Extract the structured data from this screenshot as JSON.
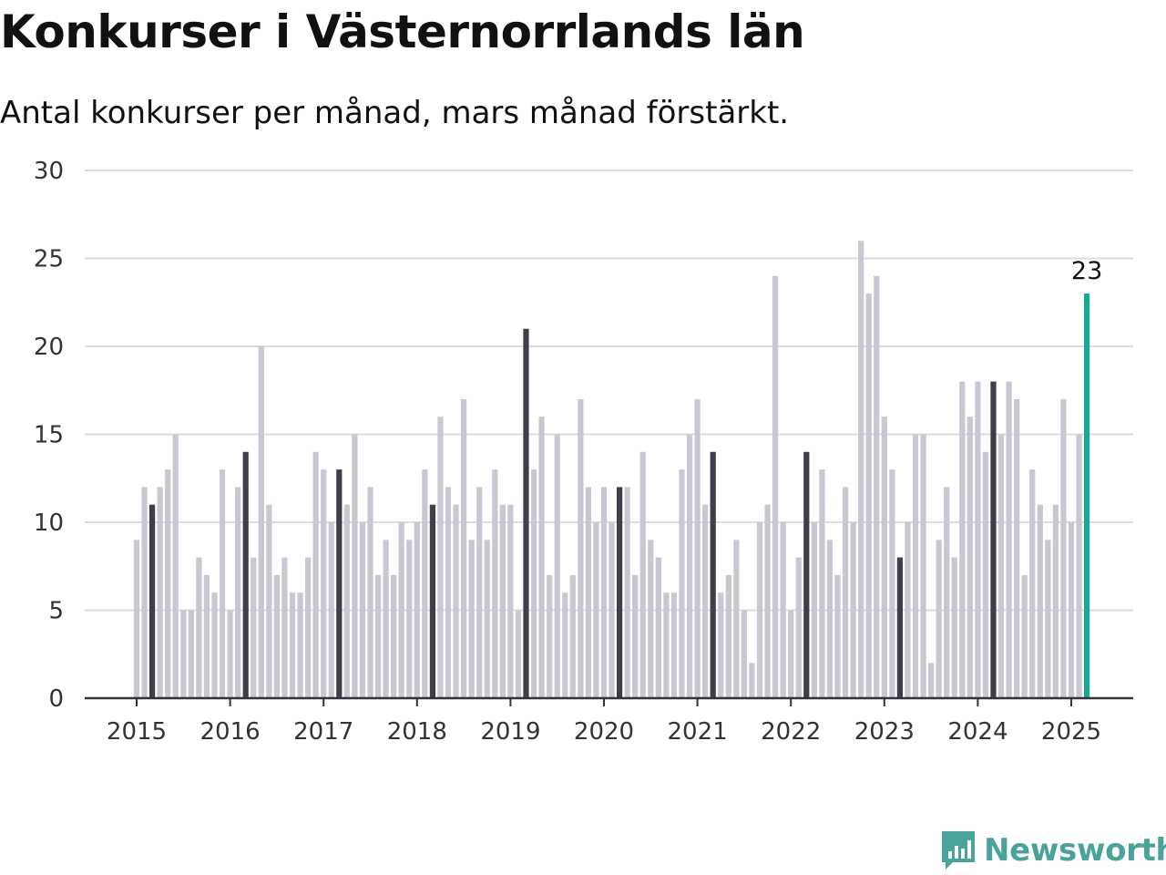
{
  "header": {
    "title": "Konkurser i Västernorrlands län",
    "subtitle": "Antal konkurser per månad, mars månad förstärkt."
  },
  "brand": {
    "name": "Newsworthy",
    "icon": "bar-chart-speech-bubble-icon"
  },
  "colors": {
    "bar": "#c9c8d2",
    "highlight": "#3f3e4a",
    "latest": "#1aa595",
    "gridline": "#dddddd",
    "axis": "#333333",
    "brand": "#4aa39a"
  },
  "chart_data": {
    "type": "bar",
    "ylim": [
      0,
      30
    ],
    "yticks": [
      0,
      5,
      10,
      15,
      20,
      25,
      30
    ],
    "xticks": [
      "2015",
      "2016",
      "2017",
      "2018",
      "2019",
      "2020",
      "2021",
      "2022",
      "2023",
      "2024",
      "2025"
    ],
    "grid": true,
    "start": "2015-01",
    "emphasis": "March of each year dark; latest month teal",
    "latest_label": "23",
    "values": [
      9,
      12,
      11,
      12,
      13,
      15,
      5,
      5,
      8,
      7,
      6,
      13,
      5,
      12,
      14,
      8,
      20,
      11,
      7,
      8,
      6,
      6,
      8,
      14,
      13,
      10,
      13,
      11,
      15,
      10,
      12,
      7,
      9,
      7,
      10,
      9,
      10,
      13,
      11,
      16,
      12,
      11,
      17,
      9,
      12,
      9,
      13,
      11,
      11,
      5,
      21,
      13,
      16,
      7,
      15,
      6,
      7,
      17,
      12,
      10,
      12,
      10,
      12,
      12,
      7,
      14,
      9,
      8,
      6,
      6,
      13,
      15,
      17,
      11,
      14,
      6,
      7,
      9,
      5,
      2,
      10,
      11,
      24,
      10,
      5,
      8,
      14,
      10,
      13,
      9,
      7,
      12,
      10,
      26,
      23,
      24,
      16,
      13,
      8,
      10,
      15,
      15,
      2,
      9,
      12,
      8,
      18,
      16,
      18,
      14,
      18,
      15,
      18,
      17,
      7,
      13,
      11,
      9,
      11,
      17,
      10,
      15,
      23
    ]
  }
}
